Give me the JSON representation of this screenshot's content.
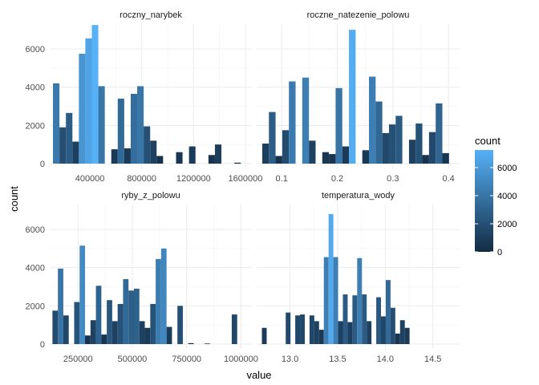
{
  "chart_data": {
    "type": "histogram",
    "xlabel": "value",
    "ylabel": "count",
    "y_ticks": [
      "0",
      "2000",
      "4000",
      "6000"
    ],
    "ylim": [
      0,
      7300
    ],
    "grid": true,
    "legend": {
      "title": "count",
      "position": "right",
      "range": [
        0,
        7250
      ],
      "ticks": [
        "0",
        "2000",
        "4000",
        "6000"
      ],
      "color_low": "#132B43",
      "color_high": "#56B1F7"
    },
    "facets": [
      {
        "name": "roczny_narybek",
        "x_ticks": [
          "400000",
          "800000",
          "1200000",
          "1600000"
        ],
        "xlim": [
          90000,
          1650000
        ],
        "bars": [
          {
            "x": 140000,
            "count": 4200
          },
          {
            "x": 190000,
            "count": 1900
          },
          {
            "x": 240000,
            "count": 2650
          },
          {
            "x": 290000,
            "count": 1150
          },
          {
            "x": 340000,
            "count": 5750
          },
          {
            "x": 390000,
            "count": 6550
          },
          {
            "x": 440000,
            "count": 7250
          },
          {
            "x": 490000,
            "count": 4050
          },
          {
            "x": 590000,
            "count": 750
          },
          {
            "x": 640000,
            "count": 3400
          },
          {
            "x": 690000,
            "count": 800
          },
          {
            "x": 740000,
            "count": 3650
          },
          {
            "x": 790000,
            "count": 4050
          },
          {
            "x": 840000,
            "count": 1950
          },
          {
            "x": 890000,
            "count": 1200
          },
          {
            "x": 940000,
            "count": 400
          },
          {
            "x": 1090000,
            "count": 600
          },
          {
            "x": 1190000,
            "count": 900
          },
          {
            "x": 1340000,
            "count": 450
          },
          {
            "x": 1390000,
            "count": 1000
          },
          {
            "x": 1540000,
            "count": 50
          }
        ]
      },
      {
        "name": "roczne_natezenie_polowu",
        "x_ticks": [
          "0.1",
          "0.2",
          "0.3",
          "0.4"
        ],
        "xlim": [
          0.055,
          0.42
        ],
        "bars": [
          {
            "x": 0.071,
            "count": 1050
          },
          {
            "x": 0.083,
            "count": 2700
          },
          {
            "x": 0.095,
            "count": 400
          },
          {
            "x": 0.107,
            "count": 1750
          },
          {
            "x": 0.119,
            "count": 4300
          },
          {
            "x": 0.143,
            "count": 4500
          },
          {
            "x": 0.155,
            "count": 1200
          },
          {
            "x": 0.179,
            "count": 600
          },
          {
            "x": 0.191,
            "count": 500
          },
          {
            "x": 0.203,
            "count": 3950
          },
          {
            "x": 0.215,
            "count": 900
          },
          {
            "x": 0.227,
            "count": 7000
          },
          {
            "x": 0.251,
            "count": 700
          },
          {
            "x": 0.263,
            "count": 4550
          },
          {
            "x": 0.275,
            "count": 3250
          },
          {
            "x": 0.287,
            "count": 1600
          },
          {
            "x": 0.299,
            "count": 2050
          },
          {
            "x": 0.311,
            "count": 2500
          },
          {
            "x": 0.335,
            "count": 1250
          },
          {
            "x": 0.347,
            "count": 2100
          },
          {
            "x": 0.359,
            "count": 450
          },
          {
            "x": 0.371,
            "count": 1650
          },
          {
            "x": 0.383,
            "count": 3150
          },
          {
            "x": 0.395,
            "count": 550
          }
        ]
      },
      {
        "name": "ryby_z_polowu",
        "x_ticks": [
          "250000",
          "500000",
          "750000",
          "1000000"
        ],
        "xlim": [
          120000,
          1050000
        ],
        "bars": [
          {
            "x": 145000,
            "count": 1750
          },
          {
            "x": 170000,
            "count": 3950
          },
          {
            "x": 195000,
            "count": 1500
          },
          {
            "x": 245000,
            "count": 2200
          },
          {
            "x": 270000,
            "count": 5150
          },
          {
            "x": 295000,
            "count": 450
          },
          {
            "x": 320000,
            "count": 1250
          },
          {
            "x": 345000,
            "count": 3050
          },
          {
            "x": 370000,
            "count": 500
          },
          {
            "x": 395000,
            "count": 2300
          },
          {
            "x": 420000,
            "count": 1200
          },
          {
            "x": 445000,
            "count": 2100
          },
          {
            "x": 470000,
            "count": 3400
          },
          {
            "x": 495000,
            "count": 2800
          },
          {
            "x": 520000,
            "count": 2900
          },
          {
            "x": 545000,
            "count": 1200
          },
          {
            "x": 570000,
            "count": 850
          },
          {
            "x": 595000,
            "count": 2100
          },
          {
            "x": 620000,
            "count": 4450
          },
          {
            "x": 645000,
            "count": 5000
          },
          {
            "x": 670000,
            "count": 900
          },
          {
            "x": 720000,
            "count": 2000
          },
          {
            "x": 770000,
            "count": 50
          },
          {
            "x": 845000,
            "count": 30
          },
          {
            "x": 970000,
            "count": 1550
          }
        ]
      },
      {
        "name": "temperatura_wody",
        "x_ticks": [
          "13.0",
          "13.5",
          "14.0",
          "14.5"
        ],
        "xlim": [
          12.65,
          14.78
        ],
        "bars": [
          {
            "x": 12.73,
            "count": 850
          },
          {
            "x": 12.98,
            "count": 1650
          },
          {
            "x": 13.08,
            "count": 1500
          },
          {
            "x": 13.13,
            "count": 1550
          },
          {
            "x": 13.23,
            "count": 1500
          },
          {
            "x": 13.28,
            "count": 1200
          },
          {
            "x": 13.33,
            "count": 750
          },
          {
            "x": 13.38,
            "count": 4550
          },
          {
            "x": 13.43,
            "count": 6800
          },
          {
            "x": 13.48,
            "count": 4550
          },
          {
            "x": 13.53,
            "count": 1200
          },
          {
            "x": 13.58,
            "count": 2600
          },
          {
            "x": 13.63,
            "count": 1150
          },
          {
            "x": 13.68,
            "count": 2550
          },
          {
            "x": 13.73,
            "count": 4500
          },
          {
            "x": 13.78,
            "count": 2600
          },
          {
            "x": 13.83,
            "count": 1200
          },
          {
            "x": 13.93,
            "count": 2450
          },
          {
            "x": 13.98,
            "count": 1450
          },
          {
            "x": 14.03,
            "count": 3350
          },
          {
            "x": 14.08,
            "count": 1900
          },
          {
            "x": 14.13,
            "count": 550
          },
          {
            "x": 14.18,
            "count": 1250
          },
          {
            "x": 14.23,
            "count": 850
          }
        ]
      }
    ]
  }
}
